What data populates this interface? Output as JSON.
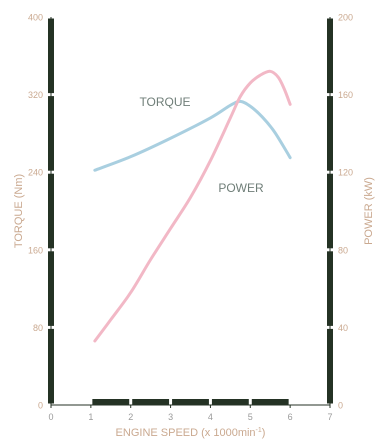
{
  "chart_data": {
    "type": "line",
    "x": {
      "label": "ENGINE SPEED (x 1000min-1)",
      "label_main": "ENGINE SPEED (x 1000min",
      "label_sup": "-1",
      "label_end": ")",
      "range": [
        0,
        7
      ],
      "ticks": [
        "0",
        "1",
        "2",
        "3",
        "4",
        "5",
        "6",
        "7"
      ]
    },
    "y_left": {
      "label": "TORQUE (Nm)",
      "range": [
        0,
        400
      ],
      "ticks": [
        "0",
        "80",
        "160",
        "240",
        "320",
        "400"
      ]
    },
    "y_right": {
      "label": "POWER (kW)",
      "range": [
        0,
        200
      ],
      "ticks": [
        "0",
        "40",
        "80",
        "120",
        "160",
        "200"
      ]
    },
    "series": [
      {
        "name": "TORQUE",
        "axis": "left",
        "color": "#a9cfe0",
        "points": [
          [
            1.1,
            242
          ],
          [
            2,
            256
          ],
          [
            3,
            275
          ],
          [
            4,
            296
          ],
          [
            4.5,
            309
          ],
          [
            4.75,
            313
          ],
          [
            5,
            308
          ],
          [
            5.3,
            297
          ],
          [
            5.6,
            282
          ],
          [
            5.9,
            262
          ],
          [
            6.0,
            255
          ]
        ]
      },
      {
        "name": "POWER",
        "axis": "right",
        "color": "#f2b8c6",
        "points": [
          [
            1.1,
            33
          ],
          [
            1.5,
            44
          ],
          [
            2,
            58
          ],
          [
            2.5,
            75
          ],
          [
            3,
            91
          ],
          [
            3.5,
            107
          ],
          [
            4,
            126
          ],
          [
            4.5,
            148
          ],
          [
            4.75,
            159
          ],
          [
            5,
            166
          ],
          [
            5.25,
            170
          ],
          [
            5.5,
            172
          ],
          [
            5.7,
            169
          ],
          [
            5.85,
            163
          ],
          [
            6.0,
            155
          ]
        ]
      }
    ],
    "grid": false,
    "colors": {
      "axis_bar": "#243224",
      "text": "#caa990",
      "gray_text": "#9a9a9a",
      "series_label": "#6f7e78"
    }
  }
}
